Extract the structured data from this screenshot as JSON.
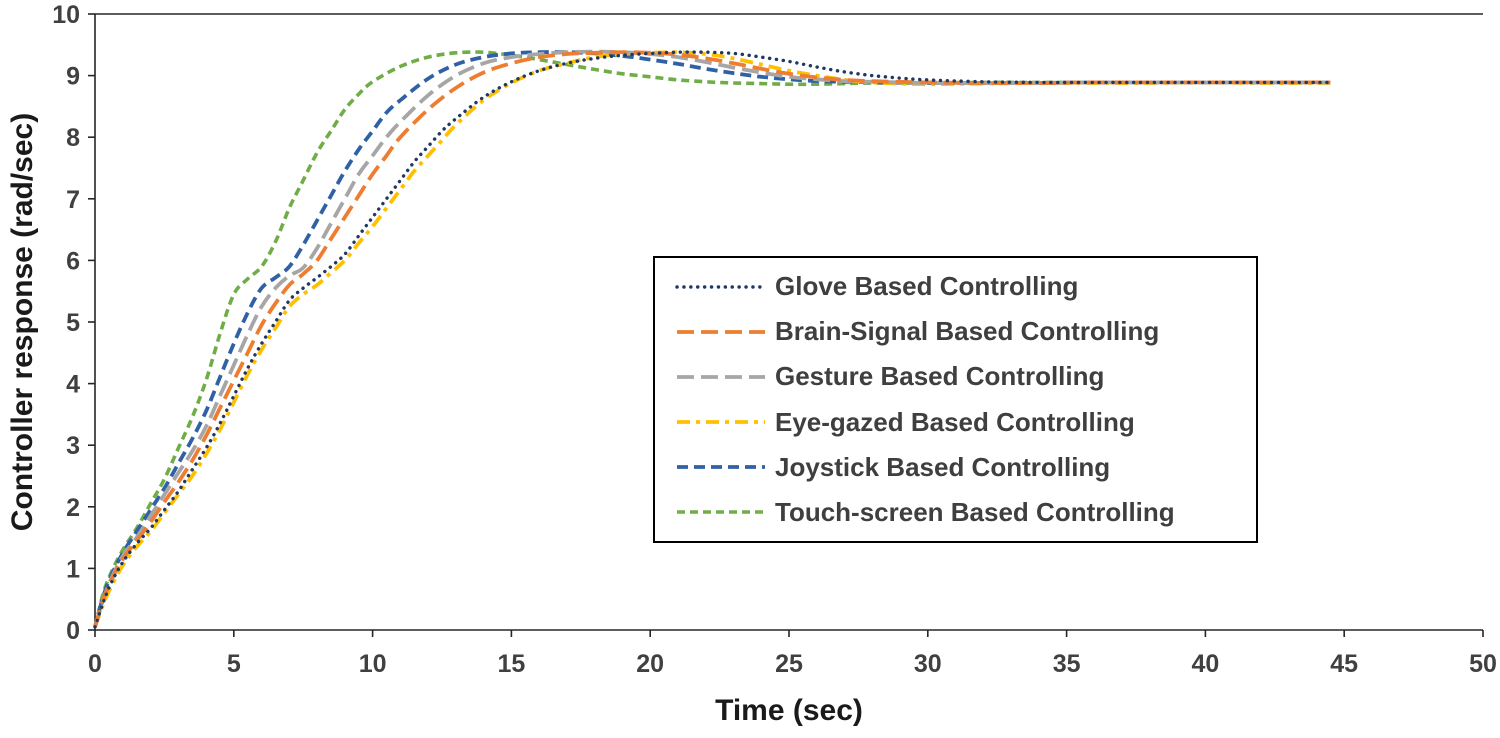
{
  "chart_data": {
    "type": "line",
    "title": "",
    "xlabel": "Time (sec)",
    "ylabel": "Controller response (rad/sec)",
    "xlim": [
      0,
      50
    ],
    "ylim": [
      0,
      10
    ],
    "x_ticks": [
      0,
      5,
      10,
      15,
      20,
      25,
      30,
      35,
      40,
      45,
      50
    ],
    "y_ticks": [
      0,
      1,
      2,
      3,
      4,
      5,
      6,
      7,
      8,
      9,
      10
    ],
    "grid": false,
    "legend_position": "center-right",
    "axis_color": "#262626",
    "series": [
      {
        "name": "Glove Based Controlling",
        "color": "#1F3864",
        "dash": "0.1 6.8",
        "width": 3.4,
        "cap": "round",
        "points": [
          [
            0,
            0.05
          ],
          [
            0.3,
            0.45
          ],
          [
            0.6,
            0.78
          ],
          [
            1,
            1.1
          ],
          [
            1.5,
            1.4
          ],
          [
            2,
            1.65
          ],
          [
            2.5,
            1.95
          ],
          [
            3,
            2.25
          ],
          [
            3.5,
            2.6
          ],
          [
            4,
            2.95
          ],
          [
            4.5,
            3.35
          ],
          [
            5,
            3.8
          ],
          [
            5.5,
            4.25
          ],
          [
            6,
            4.65
          ],
          [
            6.5,
            5.0
          ],
          [
            7,
            5.35
          ],
          [
            7.5,
            5.55
          ],
          [
            8,
            5.72
          ],
          [
            8.5,
            5.9
          ],
          [
            9,
            6.1
          ],
          [
            9.5,
            6.4
          ],
          [
            10,
            6.7
          ],
          [
            10.5,
            7.0
          ],
          [
            11,
            7.3
          ],
          [
            11.5,
            7.6
          ],
          [
            12,
            7.85
          ],
          [
            12.5,
            8.1
          ],
          [
            13,
            8.3
          ],
          [
            14,
            8.65
          ],
          [
            15,
            8.9
          ],
          [
            16,
            9.08
          ],
          [
            17,
            9.2
          ],
          [
            18,
            9.28
          ],
          [
            19,
            9.33
          ],
          [
            20,
            9.36
          ],
          [
            21,
            9.38
          ],
          [
            22,
            9.38
          ],
          [
            23,
            9.36
          ],
          [
            24,
            9.3
          ],
          [
            25,
            9.23
          ],
          [
            26,
            9.14
          ],
          [
            27,
            9.06
          ],
          [
            28,
            9.0
          ],
          [
            29,
            8.96
          ],
          [
            30,
            8.93
          ],
          [
            32,
            8.9
          ],
          [
            34,
            8.89
          ],
          [
            36,
            8.89
          ],
          [
            38,
            8.89
          ],
          [
            40,
            8.89
          ],
          [
            42,
            8.89
          ],
          [
            44.5,
            8.89
          ]
        ]
      },
      {
        "name": "Brain-Signal Based Controlling",
        "color": "#ED7D31",
        "dash": "17 7",
        "width": 3.8,
        "cap": "butt",
        "points": [
          [
            0,
            0.05
          ],
          [
            0.3,
            0.5
          ],
          [
            0.6,
            0.82
          ],
          [
            1,
            1.15
          ],
          [
            1.5,
            1.45
          ],
          [
            2,
            1.75
          ],
          [
            2.5,
            2.08
          ],
          [
            3,
            2.4
          ],
          [
            3.5,
            2.75
          ],
          [
            4,
            3.15
          ],
          [
            4.5,
            3.6
          ],
          [
            5,
            4.05
          ],
          [
            5.5,
            4.5
          ],
          [
            6,
            4.95
          ],
          [
            6.5,
            5.3
          ],
          [
            7,
            5.6
          ],
          [
            7.5,
            5.78
          ],
          [
            8,
            6.0
          ],
          [
            8.5,
            6.35
          ],
          [
            9,
            6.7
          ],
          [
            9.5,
            7.05
          ],
          [
            10,
            7.4
          ],
          [
            10.5,
            7.7
          ],
          [
            11,
            8.0
          ],
          [
            12,
            8.45
          ],
          [
            13,
            8.8
          ],
          [
            14,
            9.05
          ],
          [
            15,
            9.2
          ],
          [
            16,
            9.3
          ],
          [
            17,
            9.35
          ],
          [
            18,
            9.37
          ],
          [
            19,
            9.38
          ],
          [
            20,
            9.37
          ],
          [
            21,
            9.34
          ],
          [
            22,
            9.28
          ],
          [
            23,
            9.2
          ],
          [
            24,
            9.11
          ],
          [
            25,
            9.03
          ],
          [
            26,
            8.97
          ],
          [
            27,
            8.93
          ],
          [
            28,
            8.91
          ],
          [
            30,
            8.89
          ],
          [
            32,
            8.88
          ],
          [
            34,
            8.88
          ],
          [
            36,
            8.89
          ],
          [
            38,
            8.89
          ],
          [
            40,
            8.89
          ],
          [
            42,
            8.89
          ],
          [
            44.5,
            8.89
          ]
        ]
      },
      {
        "name": "Gesture Based Controlling",
        "color": "#A6A6A6",
        "dash": "17 7",
        "width": 3.8,
        "cap": "butt",
        "points": [
          [
            0,
            0.05
          ],
          [
            0.3,
            0.5
          ],
          [
            0.6,
            0.85
          ],
          [
            1,
            1.2
          ],
          [
            1.5,
            1.5
          ],
          [
            2,
            1.85
          ],
          [
            2.5,
            2.2
          ],
          [
            3,
            2.55
          ],
          [
            3.5,
            2.9
          ],
          [
            4,
            3.3
          ],
          [
            4.5,
            3.8
          ],
          [
            5,
            4.3
          ],
          [
            5.5,
            4.8
          ],
          [
            6,
            5.25
          ],
          [
            6.5,
            5.55
          ],
          [
            7,
            5.75
          ],
          [
            7.5,
            5.88
          ],
          [
            8,
            6.2
          ],
          [
            8.5,
            6.6
          ],
          [
            9,
            7.0
          ],
          [
            9.5,
            7.4
          ],
          [
            10,
            7.7
          ],
          [
            10.5,
            8.0
          ],
          [
            11,
            8.25
          ],
          [
            12,
            8.68
          ],
          [
            13,
            9.0
          ],
          [
            14,
            9.2
          ],
          [
            15,
            9.3
          ],
          [
            16,
            9.35
          ],
          [
            17,
            9.38
          ],
          [
            18,
            9.39
          ],
          [
            19,
            9.38
          ],
          [
            20,
            9.35
          ],
          [
            21,
            9.3
          ],
          [
            22,
            9.22
          ],
          [
            23,
            9.13
          ],
          [
            24,
            9.05
          ],
          [
            25,
            8.98
          ],
          [
            26,
            8.94
          ],
          [
            27,
            8.91
          ],
          [
            28,
            8.9
          ],
          [
            30,
            8.88
          ],
          [
            32,
            8.88
          ],
          [
            34,
            8.88
          ],
          [
            36,
            8.89
          ],
          [
            38,
            8.89
          ],
          [
            40,
            8.89
          ],
          [
            42,
            8.89
          ],
          [
            44.5,
            8.89
          ]
        ]
      },
      {
        "name": "Eye-gazed Based Controlling",
        "color": "#FFC000",
        "dash": "13 6 4 6",
        "width": 3.8,
        "cap": "butt",
        "points": [
          [
            0,
            0.05
          ],
          [
            0.3,
            0.42
          ],
          [
            0.6,
            0.72
          ],
          [
            1,
            1.05
          ],
          [
            1.5,
            1.35
          ],
          [
            2,
            1.6
          ],
          [
            2.5,
            1.9
          ],
          [
            3,
            2.2
          ],
          [
            3.5,
            2.5
          ],
          [
            4,
            2.85
          ],
          [
            4.5,
            3.25
          ],
          [
            5,
            3.7
          ],
          [
            5.5,
            4.15
          ],
          [
            6,
            4.55
          ],
          [
            6.5,
            4.9
          ],
          [
            7,
            5.25
          ],
          [
            7.5,
            5.45
          ],
          [
            8,
            5.6
          ],
          [
            8.5,
            5.8
          ],
          [
            9,
            6.0
          ],
          [
            9.5,
            6.28
          ],
          [
            10,
            6.55
          ],
          [
            10.5,
            6.85
          ],
          [
            11,
            7.15
          ],
          [
            11.5,
            7.45
          ],
          [
            12,
            7.7
          ],
          [
            12.5,
            7.95
          ],
          [
            13,
            8.2
          ],
          [
            14,
            8.6
          ],
          [
            15,
            8.88
          ],
          [
            16,
            9.08
          ],
          [
            17,
            9.2
          ],
          [
            18,
            9.3
          ],
          [
            19,
            9.35
          ],
          [
            20,
            9.37
          ],
          [
            21,
            9.38
          ],
          [
            22,
            9.35
          ],
          [
            23,
            9.28
          ],
          [
            24,
            9.18
          ],
          [
            25,
            9.08
          ],
          [
            26,
            9.0
          ],
          [
            27,
            8.93
          ],
          [
            28,
            8.89
          ],
          [
            29,
            8.87
          ],
          [
            30,
            8.86
          ],
          [
            32,
            8.87
          ],
          [
            34,
            8.88
          ],
          [
            36,
            8.88
          ],
          [
            38,
            8.88
          ],
          [
            40,
            8.89
          ],
          [
            42,
            8.88
          ],
          [
            44.5,
            8.88
          ]
        ]
      },
      {
        "name": "Joystick Based Controlling",
        "color": "#3161A5",
        "dash": "11 6",
        "width": 3.8,
        "cap": "butt",
        "points": [
          [
            0,
            0.05
          ],
          [
            0.3,
            0.55
          ],
          [
            0.6,
            0.9
          ],
          [
            1,
            1.25
          ],
          [
            1.5,
            1.6
          ],
          [
            2,
            1.95
          ],
          [
            2.5,
            2.3
          ],
          [
            3,
            2.7
          ],
          [
            3.5,
            3.1
          ],
          [
            4,
            3.55
          ],
          [
            4.5,
            4.1
          ],
          [
            5,
            4.65
          ],
          [
            5.5,
            5.15
          ],
          [
            6,
            5.55
          ],
          [
            6.5,
            5.72
          ],
          [
            7,
            5.9
          ],
          [
            7.5,
            6.25
          ],
          [
            8,
            6.65
          ],
          [
            8.5,
            7.05
          ],
          [
            9,
            7.45
          ],
          [
            9.5,
            7.8
          ],
          [
            10,
            8.1
          ],
          [
            10.5,
            8.4
          ],
          [
            11,
            8.6
          ],
          [
            12,
            8.95
          ],
          [
            13,
            9.18
          ],
          [
            14,
            9.3
          ],
          [
            15,
            9.36
          ],
          [
            16,
            9.38
          ],
          [
            17,
            9.38
          ],
          [
            18,
            9.36
          ],
          [
            19,
            9.32
          ],
          [
            20,
            9.26
          ],
          [
            21,
            9.19
          ],
          [
            22,
            9.11
          ],
          [
            23,
            9.04
          ],
          [
            24,
            8.98
          ],
          [
            25,
            8.94
          ],
          [
            26,
            8.91
          ],
          [
            27,
            8.9
          ],
          [
            28,
            8.89
          ],
          [
            30,
            8.88
          ],
          [
            32,
            8.88
          ],
          [
            34,
            8.88
          ],
          [
            36,
            8.89
          ],
          [
            38,
            8.89
          ],
          [
            40,
            8.89
          ],
          [
            42,
            8.89
          ],
          [
            44.5,
            8.89
          ]
        ]
      },
      {
        "name": "Touch-screen Based Controlling",
        "color": "#70AD47",
        "dash": "8 5",
        "width": 3.6,
        "cap": "butt",
        "points": [
          [
            0,
            0.05
          ],
          [
            0.3,
            0.6
          ],
          [
            0.6,
            0.95
          ],
          [
            1,
            1.3
          ],
          [
            1.5,
            1.65
          ],
          [
            2,
            2.05
          ],
          [
            2.5,
            2.45
          ],
          [
            3,
            2.95
          ],
          [
            3.5,
            3.45
          ],
          [
            4,
            4.05
          ],
          [
            4.5,
            4.8
          ],
          [
            5,
            5.45
          ],
          [
            5.5,
            5.7
          ],
          [
            6,
            5.9
          ],
          [
            6.5,
            6.3
          ],
          [
            7,
            6.85
          ],
          [
            7.5,
            7.3
          ],
          [
            8,
            7.75
          ],
          [
            8.5,
            8.1
          ],
          [
            9,
            8.45
          ],
          [
            9.5,
            8.7
          ],
          [
            10,
            8.9
          ],
          [
            11,
            9.15
          ],
          [
            12,
            9.3
          ],
          [
            13,
            9.37
          ],
          [
            14,
            9.38
          ],
          [
            15,
            9.33
          ],
          [
            16,
            9.26
          ],
          [
            17,
            9.18
          ],
          [
            18,
            9.1
          ],
          [
            19,
            9.03
          ],
          [
            20,
            8.98
          ],
          [
            21,
            8.93
          ],
          [
            22,
            8.9
          ],
          [
            23,
            8.88
          ],
          [
            24,
            8.87
          ],
          [
            25,
            8.86
          ],
          [
            26,
            8.86
          ],
          [
            27,
            8.87
          ],
          [
            28,
            8.88
          ],
          [
            30,
            8.88
          ],
          [
            32,
            8.89
          ],
          [
            34,
            8.89
          ],
          [
            36,
            8.89
          ],
          [
            38,
            8.89
          ],
          [
            40,
            8.89
          ],
          [
            42,
            8.89
          ],
          [
            44.5,
            8.89
          ]
        ]
      }
    ]
  }
}
